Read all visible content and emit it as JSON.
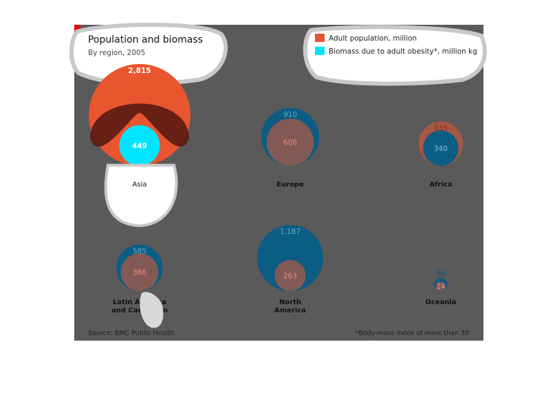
{
  "colors": {
    "population": "#e8552f",
    "biomass": "#0b5d83",
    "biomass_highlight": "#00e5ff",
    "panel_bg": "#5a5a5a",
    "accent": "#e3120b"
  },
  "chart_data": {
    "type": "bubble",
    "title": "Population and biomass",
    "subtitle": "By region, 2005",
    "legend": [
      {
        "key": "population",
        "label": "Adult population, million",
        "color": "#e8552f"
      },
      {
        "key": "biomass",
        "label": "Biomass due to adult obesity*, million kg",
        "color": "#00e5ff"
      }
    ],
    "regions": [
      {
        "name": "Asia",
        "label_lines": [
          "Asia"
        ],
        "population": 2815,
        "biomass": 449,
        "population_label": "2,815",
        "biomass_label": "449"
      },
      {
        "name": "Europe",
        "label_lines": [
          "Europe"
        ],
        "population": 606,
        "biomass": 910,
        "population_label": "606",
        "biomass_label": "910"
      },
      {
        "name": "Africa",
        "label_lines": [
          "Africa"
        ],
        "population": 535,
        "biomass": 340,
        "population_label": "535",
        "biomass_label": "340"
      },
      {
        "name": "Latin America and Caribbean",
        "label_lines": [
          "Latin America",
          "and Caribbean"
        ],
        "population": 386,
        "biomass": 585,
        "population_label": "386",
        "biomass_label": "585"
      },
      {
        "name": "North America",
        "label_lines": [
          "North",
          "America"
        ],
        "population": 263,
        "biomass": 1187,
        "population_label": "263",
        "biomass_label": "1,187"
      },
      {
        "name": "Oceania",
        "label_lines": [
          "Oceania"
        ],
        "population": 24,
        "biomass": 46,
        "population_label": "24",
        "biomass_label": "46"
      }
    ],
    "source": "Source: BMC Public Health",
    "footnote": "*Body-mass index of more than 30"
  }
}
